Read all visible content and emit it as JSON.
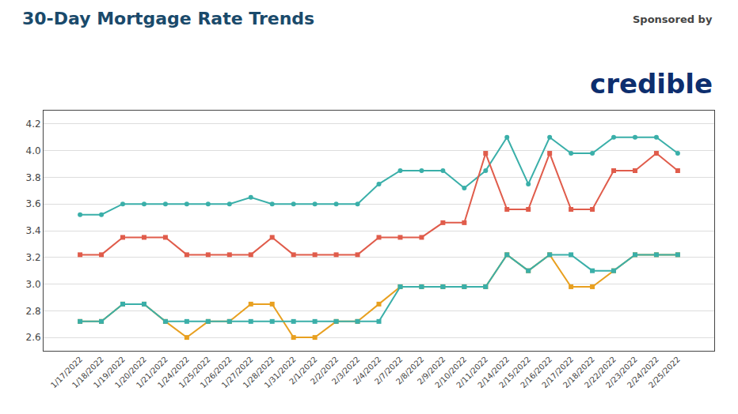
{
  "chart_data": {
    "type": "line",
    "title": "30-Day Mortgage Rate Trends",
    "annotations": [
      "Sponsored by",
      "credible"
    ],
    "categories": [
      "1/17/2022",
      "1/18/2022",
      "1/19/2022",
      "1/20/2022",
      "1/21/2022",
      "1/24/2022",
      "1/25/2022",
      "1/26/2022",
      "1/27/2022",
      "1/28/2022",
      "1/31/2022",
      "2/1/2022",
      "2/2/2022",
      "2/3/2022",
      "2/4/2022",
      "2/7/2022",
      "2/8/2022",
      "2/9/2022",
      "2/10/2022",
      "2/11/2022",
      "2/14/2022",
      "2/15/2022",
      "2/16/2022",
      "2/17/2022",
      "2/18/2022",
      "2/22/2022",
      "2/23/2022",
      "2/24/2022",
      "2/25/2022"
    ],
    "series": [
      {
        "color": "#3aafa9",
        "marker": "circle",
        "values": [
          3.52,
          3.52,
          3.6,
          3.6,
          3.6,
          3.6,
          3.6,
          3.6,
          3.65,
          3.6,
          3.6,
          3.6,
          3.6,
          3.6,
          3.75,
          3.85,
          3.85,
          3.85,
          3.72,
          3.85,
          4.1,
          3.75,
          4.1,
          3.98,
          3.98,
          4.1,
          4.1,
          4.1,
          3.98
        ]
      },
      {
        "color": "#e05c4b",
        "marker": "square",
        "values": [
          3.22,
          3.22,
          3.35,
          3.35,
          3.35,
          3.22,
          3.22,
          3.22,
          3.22,
          3.35,
          3.22,
          3.22,
          3.22,
          3.22,
          3.35,
          3.35,
          3.35,
          3.46,
          3.46,
          3.98,
          3.56,
          3.56,
          3.98,
          3.56,
          3.56,
          3.85,
          3.85,
          3.98,
          3.85
        ]
      },
      {
        "color": "#e8a020",
        "marker": "square",
        "values": [
          2.72,
          2.72,
          2.85,
          2.85,
          2.72,
          2.6,
          2.72,
          2.72,
          2.85,
          2.85,
          2.6,
          2.6,
          2.72,
          2.72,
          2.85,
          2.98,
          2.98,
          2.98,
          2.98,
          2.98,
          3.22,
          3.1,
          3.22,
          2.98,
          2.98,
          3.1,
          3.22,
          3.22,
          3.22
        ]
      },
      {
        "color": "#3aafa9",
        "marker": "square",
        "values": [
          2.72,
          2.72,
          2.85,
          2.85,
          2.72,
          2.72,
          2.72,
          2.72,
          2.72,
          2.72,
          2.72,
          2.72,
          2.72,
          2.72,
          2.72,
          2.98,
          2.98,
          2.98,
          2.98,
          2.98,
          3.22,
          3.1,
          3.22,
          3.22,
          3.1,
          3.1,
          3.22,
          3.22,
          3.22
        ]
      }
    ],
    "ylim": [
      2.5,
      4.3
    ],
    "yticks": [
      2.6,
      2.8,
      {
        "value": 3,
        "label": "3.0"
      },
      3.2,
      3.4,
      3.6,
      3.8,
      {
        "value": 4,
        "label": "4.0"
      },
      4.2
    ],
    "grid": true
  }
}
